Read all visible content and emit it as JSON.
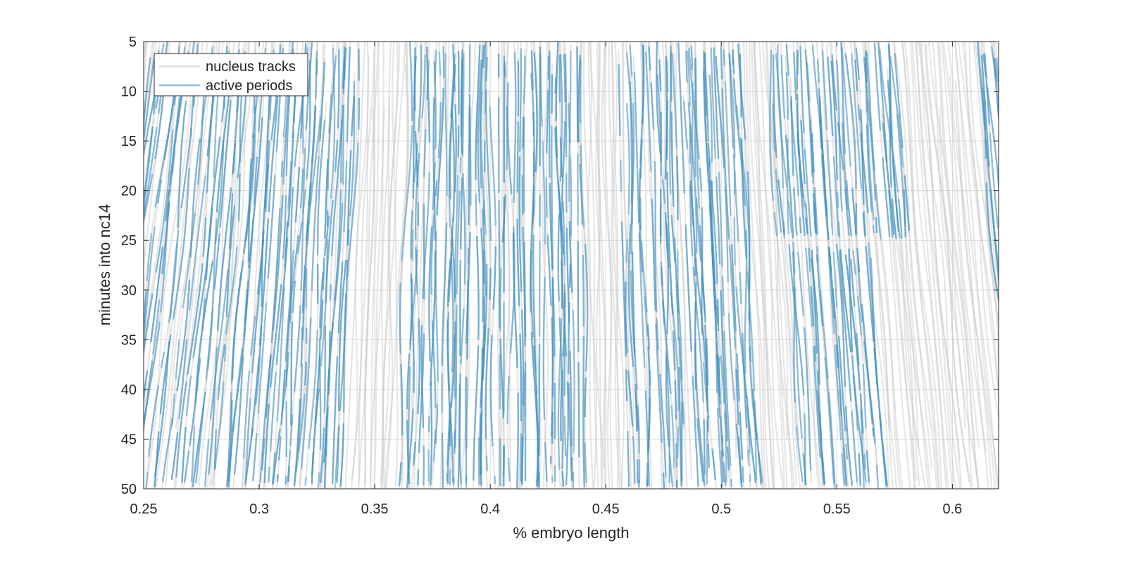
{
  "chart_data": {
    "type": "line",
    "title": "",
    "xlabel": "% embryo length",
    "ylabel": "minutes into nc14",
    "xlim": [
      0.25,
      0.62
    ],
    "ylim": [
      5,
      50
    ],
    "y_reversed": true,
    "grid": true,
    "x_ticks": [
      0.25,
      0.3,
      0.35,
      0.4,
      0.45,
      0.5,
      0.55,
      0.6
    ],
    "x_tick_labels": [
      "0.25",
      "0.3",
      "0.35",
      "0.4",
      "0.45",
      "0.5",
      "0.55",
      "0.6"
    ],
    "y_ticks": [
      5,
      10,
      15,
      20,
      25,
      30,
      35,
      40,
      45,
      50
    ],
    "y_tick_labels": [
      "5",
      "10",
      "15",
      "20",
      "25",
      "30",
      "35",
      "40",
      "45",
      "50"
    ],
    "legend_position": "top-left",
    "series": [
      {
        "name": "nucleus tracks",
        "color": "#c8c8c8",
        "note": "approximately 360 nucleus trajectories spanning x 0.25-0.62 over 5-50 min, each drifting slightly with time",
        "tracks": [
          {
            "x0": 0.255,
            "x1": 0.225
          },
          {
            "x0": 0.275,
            "x1": 0.255
          },
          {
            "x0": 0.3,
            "x1": 0.285
          },
          {
            "x0": 0.33,
            "x1": 0.32
          },
          {
            "x0": 0.36,
            "x1": 0.355
          },
          {
            "x0": 0.39,
            "x1": 0.388
          },
          {
            "x0": 0.42,
            "x1": 0.421
          },
          {
            "x0": 0.45,
            "x1": 0.454
          },
          {
            "x0": 0.48,
            "x1": 0.487
          },
          {
            "x0": 0.51,
            "x1": 0.52
          },
          {
            "x0": 0.54,
            "x1": 0.553
          },
          {
            "x0": 0.57,
            "x1": 0.586
          },
          {
            "x0": 0.6,
            "x1": 0.619
          }
        ]
      },
      {
        "name": "active periods",
        "color": "#3a8fc4",
        "note": "transcriptionally active segments of nucleus tracks, concentrated in stripes",
        "stripes": [
          {
            "x_range_start": [
              0.255,
              0.345
            ],
            "y_range": [
              5,
              50
            ]
          },
          {
            "x_range_start": [
              0.365,
              0.44
            ],
            "y_range": [
              5,
              50
            ]
          },
          {
            "x_range_start": [
              0.455,
              0.51
            ],
            "y_range": [
              5,
              50
            ]
          },
          {
            "x_range_start": [
              0.52,
              0.575
            ],
            "y_range": [
              5,
              25
            ]
          },
          {
            "x_range_start": [
              0.525,
              0.56
            ],
            "y_range": [
              25,
              50
            ]
          },
          {
            "x_range_start": [
              0.605,
              0.62
            ],
            "y_range": [
              5,
              50
            ]
          }
        ]
      }
    ]
  }
}
